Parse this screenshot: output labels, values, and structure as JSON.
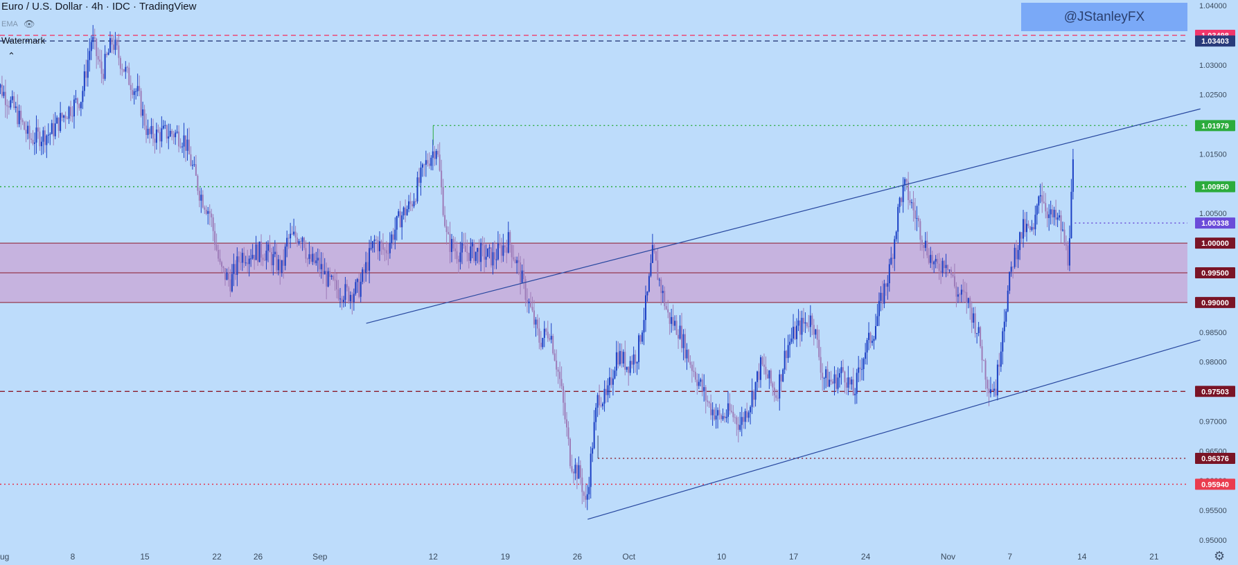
{
  "header": {
    "title": "Euro / U.S. Dollar · 4h · IDC · TradingView",
    "ema_label": "EMA",
    "eye_icon": "eye-slash-icon",
    "watermark_label": "Watermark",
    "collapse_icon": "chevron-up-icon"
  },
  "watermark": {
    "text": "@JStanleyFX"
  },
  "settings_icon": "gear-icon",
  "chart_data": {
    "type": "candlestick",
    "title": "Euro / U.S. Dollar · 4h · IDC · TradingView",
    "y_axis": {
      "ylim": [
        0.948,
        1.0404
      ],
      "ticks": [
        1.04,
        1.035,
        1.03,
        1.025,
        1.02,
        1.015,
        1.01,
        1.005,
        1.0,
        0.995,
        0.99,
        0.985,
        0.98,
        0.975,
        0.97,
        0.965,
        0.96,
        0.955,
        0.95
      ],
      "tick_labels": [
        "1.04000",
        "1.03500",
        "1.03000",
        "1.02500",
        "1.02000",
        "1.01500",
        "1.01000",
        "1.00500",
        "1.00000",
        "0.99500",
        "0.99000",
        "0.98500",
        "0.98000",
        "0.97500",
        "0.97000",
        "0.96500",
        "0.96000",
        "0.95500",
        "0.95000"
      ]
    },
    "x_axis": {
      "ticks": [
        {
          "label": "Aug",
          "day": 1
        },
        {
          "label": "8",
          "day": 8
        },
        {
          "label": "15",
          "day": 15
        },
        {
          "label": "22",
          "day": 22
        },
        {
          "label": "26",
          "day": 26
        },
        {
          "label": "Sep",
          "day": 32
        },
        {
          "label": "12",
          "day": 43
        },
        {
          "label": "19",
          "day": 50
        },
        {
          "label": "26",
          "day": 57
        },
        {
          "label": "Oct",
          "day": 62
        },
        {
          "label": "10",
          "day": 71
        },
        {
          "label": "17",
          "day": 78
        },
        {
          "label": "24",
          "day": 85
        },
        {
          "label": "Nov",
          "day": 93
        },
        {
          "label": "7",
          "day": 99
        },
        {
          "label": "14",
          "day": 106
        },
        {
          "label": "21",
          "day": 113
        }
      ]
    },
    "price_path": [
      [
        1,
        1.0265
      ],
      [
        2.5,
        1.0225
      ],
      [
        4,
        1.0175
      ],
      [
        6,
        1.0185
      ],
      [
        7.5,
        1.022
      ],
      [
        9,
        1.0245
      ],
      [
        10,
        1.0345
      ],
      [
        11,
        1.0285
      ],
      [
        12,
        1.034
      ],
      [
        13.5,
        1.028
      ],
      [
        14.5,
        1.025
      ],
      [
        15.5,
        1.018
      ],
      [
        17,
        1.0185
      ],
      [
        18,
        1.0185
      ],
      [
        19,
        1.0175
      ],
      [
        20.5,
        1.0085
      ],
      [
        21.5,
        1.005
      ],
      [
        22.5,
        0.9955
      ],
      [
        23.5,
        0.9935
      ],
      [
        24.5,
        0.998
      ],
      [
        26,
        0.9985
      ],
      [
        27,
        0.9985
      ],
      [
        28.5,
        0.9955
      ],
      [
        29,
        1.0005
      ],
      [
        30.5,
        1.0015
      ],
      [
        31,
        0.997
      ],
      [
        32,
        0.9965
      ],
      [
        33,
        0.9935
      ],
      [
        34,
        0.992
      ],
      [
        35,
        0.9915
      ],
      [
        36,
        0.9925
      ],
      [
        37.5,
        1.0005
      ],
      [
        38.5,
        0.9985
      ],
      [
        40,
        1.0045
      ],
      [
        41,
        1.0065
      ],
      [
        42.5,
        1.0135
      ],
      [
        43.5,
        1.0165
      ],
      [
        44.5,
        1.0005
      ],
      [
        45.5,
        0.9985
      ],
      [
        47.5,
        0.9985
      ],
      [
        49,
        0.9975
      ],
      [
        50.5,
        1.0005
      ],
      [
        51.5,
        0.9955
      ],
      [
        52.5,
        0.9895
      ],
      [
        53.5,
        0.9835
      ],
      [
        54.5,
        0.9855
      ],
      [
        55.5,
        0.9765
      ],
      [
        56.5,
        0.9635
      ],
      [
        57.5,
        0.9605
      ],
      [
        58,
        0.9555
      ],
      [
        58.7,
        0.9675
      ],
      [
        59.2,
        0.9745
      ],
      [
        60,
        0.9735
      ],
      [
        61,
        0.9815
      ],
      [
        62,
        0.9795
      ],
      [
        63,
        0.9815
      ],
      [
        64,
        0.9915
      ],
      [
        64.5,
        0.9985
      ],
      [
        65,
        0.9945
      ],
      [
        66,
        0.9875
      ],
      [
        67,
        0.9855
      ],
      [
        68,
        0.9805
      ],
      [
        69,
        0.9765
      ],
      [
        70,
        0.9725
      ],
      [
        71,
        0.9705
      ],
      [
        72,
        0.9715
      ],
      [
        73,
        0.9695
      ],
      [
        74,
        0.9735
      ],
      [
        75,
        0.9795
      ],
      [
        76.5,
        0.9745
      ],
      [
        77.5,
        0.9825
      ],
      [
        78.5,
        0.9855
      ],
      [
        80,
        0.9875
      ],
      [
        81,
        0.9775
      ],
      [
        82,
        0.9765
      ],
      [
        83,
        0.9785
      ],
      [
        84,
        0.9745
      ],
      [
        85,
        0.9815
      ],
      [
        86,
        0.9855
      ],
      [
        87,
        0.9925
      ],
      [
        87.5,
        0.9955
      ],
      [
        88.5,
        1.0075
      ],
      [
        89,
        1.0095
      ],
      [
        90,
        1.0045
      ],
      [
        91,
        0.9995
      ],
      [
        92,
        0.9955
      ],
      [
        93,
        0.9975
      ],
      [
        94,
        0.9915
      ],
      [
        95,
        0.9905
      ],
      [
        96,
        0.9855
      ],
      [
        97,
        0.9765
      ],
      [
        97.8,
        0.9755
      ],
      [
        98.5,
        0.9865
      ],
      [
        99.5,
        0.9975
      ],
      [
        100.5,
        1.0025
      ],
      [
        101.5,
        1.0015
      ],
      [
        102,
        1.0095
      ],
      [
        103,
        1.0045
      ],
      [
        104,
        1.0035
      ],
      [
        104.8,
        0.9975
      ],
      [
        105.3,
        1.0125
      ]
    ],
    "horizontal_lines": [
      {
        "value": 1.03498,
        "label": "1.03498",
        "color": "#f23b6a",
        "style": "dashed"
      },
      {
        "value": 1.03403,
        "label": "1.03403",
        "color": "#283a7a",
        "style": "dashed"
      },
      {
        "value": 1.01979,
        "label": "1.01979",
        "color": "#2bab3c",
        "style": "dotted"
      },
      {
        "value": 1.0095,
        "label": "1.00950",
        "color": "#2bab3c",
        "style": "dotted"
      },
      {
        "value": 1.00338,
        "label": "1.00338",
        "color": "#6a4bd8",
        "style": "dotted"
      },
      {
        "value": 1.0,
        "label": "1.00000",
        "color": "#8b1a2a",
        "style": "solid"
      },
      {
        "value": 0.995,
        "label": "0.99500",
        "color": "#8b1a2a",
        "style": "solid"
      },
      {
        "value": 0.99,
        "label": "0.99000",
        "color": "#8b1a2a",
        "style": "solid"
      },
      {
        "value": 0.97503,
        "label": "0.97503",
        "color": "#8b1a2a",
        "style": "dashed"
      },
      {
        "value": 0.96376,
        "label": "0.96376",
        "color": "#8b1a2a",
        "style": "dotted"
      },
      {
        "value": 0.9594,
        "label": "0.95940",
        "color": "#e8334a",
        "style": "dotted"
      }
    ],
    "zone": {
      "from": 0.99,
      "to": 1.0,
      "color": "#c9a6d6"
    },
    "trendlines": [
      {
        "x1": 36.5,
        "y1": 0.9865,
        "x2": 117.5,
        "y2": 1.0226,
        "color": "#26469e"
      },
      {
        "x1": 58,
        "y1": 0.9535,
        "x2": 117.5,
        "y2": 0.9837,
        "color": "#26469e"
      }
    ]
  }
}
